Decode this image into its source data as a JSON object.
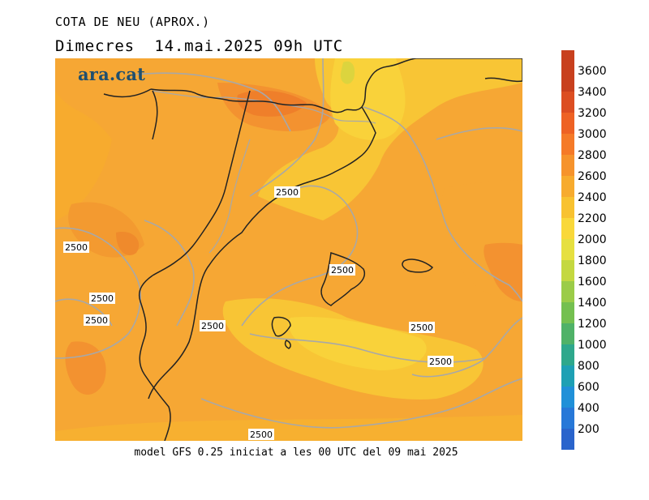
{
  "header": {
    "title": "COTA DE NEU (APROX.)",
    "subtitle": "Dimecres  14.mai.2025 09h UTC"
  },
  "logo": {
    "text": "ara.cat"
  },
  "footer": {
    "text": "model GFS 0.25 iniciat a les 00 UTC del 09 mai 2025"
  },
  "colorbar": {
    "labels": [
      "3600",
      "3400",
      "3200",
      "3000",
      "2800",
      "2600",
      "2400",
      "2200",
      "2000",
      "1800",
      "1600",
      "1400",
      "1200",
      "1000",
      "800",
      "600",
      "400",
      "200"
    ],
    "colors": [
      "#c8401e",
      "#dc4e22",
      "#ee6224",
      "#f57a28",
      "#f6932c",
      "#f7ab2e",
      "#f8c230",
      "#f9d83a",
      "#e6e040",
      "#c4d840",
      "#9bcc48",
      "#74c050",
      "#4fb268",
      "#2ea88c",
      "#1ea0b4",
      "#2090d8",
      "#2778d8",
      "#2a64cc"
    ]
  },
  "map": {
    "contour_value": "2500",
    "contour_labels": [
      "2500",
      "2500",
      "2500",
      "2500",
      "2500",
      "2500",
      "2500",
      "2500",
      "2500"
    ]
  }
}
